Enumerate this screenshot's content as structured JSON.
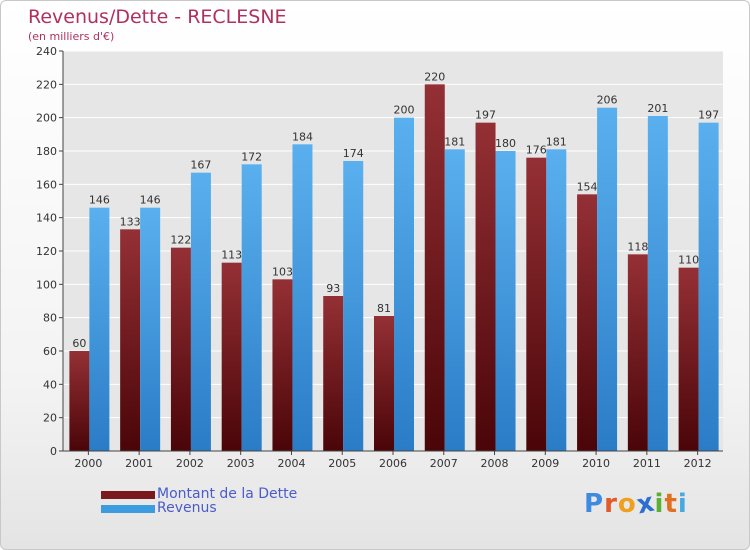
{
  "title": "Revenus/Dette - RECLESNE",
  "subtitle": "(en milliers d'€)",
  "legend": [
    {
      "label": "Montant de la Dette",
      "color": "#7a1a1e"
    },
    {
      "label": "Revenus",
      "color": "#3d9be0"
    }
  ],
  "logo": {
    "text": "Proxiti",
    "letters": [
      {
        "ch": "P",
        "color": "#3d8be0"
      },
      {
        "ch": "r",
        "color": "#e05a2a"
      },
      {
        "ch": "o",
        "color": "#f0a020"
      },
      {
        "ch": "x",
        "color": "#2c6fd0"
      },
      {
        "ch": "i",
        "color": "#5ab033"
      },
      {
        "ch": "t",
        "color": "#e07020"
      },
      {
        "ch": "i",
        "color": "#48a8e0"
      }
    ]
  },
  "chart_data": {
    "type": "bar",
    "categories": [
      "2000",
      "2001",
      "2002",
      "2003",
      "2004",
      "2005",
      "2006",
      "2007",
      "2008",
      "2009",
      "2010",
      "2011",
      "2012"
    ],
    "series": [
      {
        "name": "Montant de la Dette",
        "color": "#7a1a1e",
        "values": [
          60,
          133,
          122,
          113,
          103,
          93,
          81,
          220,
          197,
          176,
          154,
          118,
          110
        ]
      },
      {
        "name": "Revenus",
        "color": "#3d9be0",
        "values": [
          146,
          146,
          167,
          172,
          184,
          174,
          200,
          181,
          180,
          181,
          206,
          201,
          197
        ]
      }
    ],
    "ylim": [
      0,
      240
    ],
    "yticks": [
      0,
      20,
      40,
      60,
      80,
      100,
      120,
      140,
      160,
      180,
      200,
      220,
      240
    ],
    "grid": true
  }
}
